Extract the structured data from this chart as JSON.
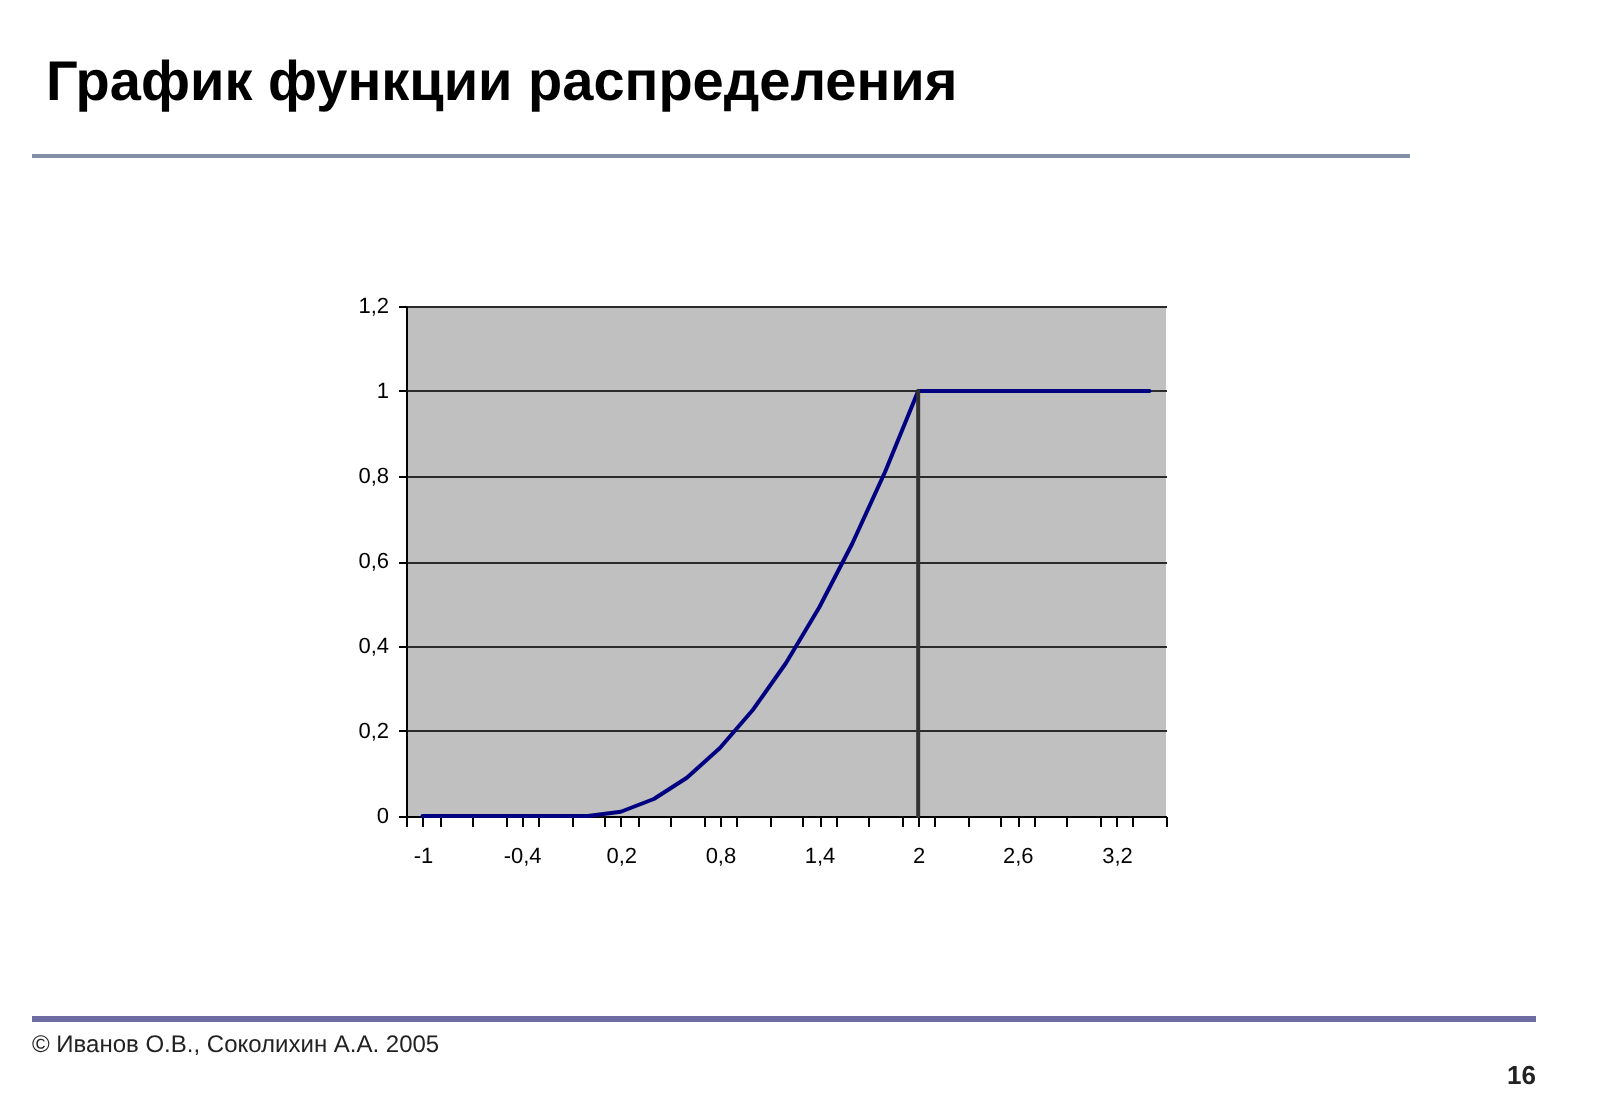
{
  "chart_data": {
    "type": "line",
    "title": "График функции распределения",
    "x": [
      -1,
      -0.8,
      -0.6,
      -0.4,
      -0.2,
      0,
      0.2,
      0.4,
      0.6,
      0.8,
      1,
      1.2,
      1.4,
      1.6,
      1.8,
      2,
      2.2,
      2.4,
      2.6,
      2.8,
      3,
      3.2,
      3.4
    ],
    "series": [
      {
        "color": "#000080",
        "values": [
          0,
          0,
          0,
          0,
          0,
          0,
          0.01,
          0.04,
          0.09,
          0.16,
          0.25,
          0.36,
          0.49,
          0.64,
          0.81,
          1,
          1,
          1,
          1,
          1,
          1,
          1,
          1
        ]
      },
      {
        "color": "#333333",
        "x": [
          2,
          2
        ],
        "values": [
          0,
          1
        ]
      }
    ],
    "xlim": [
      -1.1,
      3.5
    ],
    "xticks": [
      {
        "value": -1.1,
        "label": null
      },
      {
        "value": -1,
        "label": "-1"
      },
      {
        "value": -0.9,
        "label": null
      },
      {
        "value": -0.7,
        "label": null
      },
      {
        "value": -0.5,
        "label": null
      },
      {
        "value": -0.4,
        "label": "-0,4"
      },
      {
        "value": -0.3,
        "label": null
      },
      {
        "value": -0.1,
        "label": null
      },
      {
        "value": 0.1,
        "label": null
      },
      {
        "value": 0.2,
        "label": "0,2"
      },
      {
        "value": 0.3,
        "label": null
      },
      {
        "value": 0.5,
        "label": null
      },
      {
        "value": 0.7,
        "label": null
      },
      {
        "value": 0.8,
        "label": "0,8"
      },
      {
        "value": 0.9,
        "label": null
      },
      {
        "value": 1.1,
        "label": null
      },
      {
        "value": 1.3,
        "label": null
      },
      {
        "value": 1.4,
        "label": "1,4"
      },
      {
        "value": 1.5,
        "label": null
      },
      {
        "value": 1.7,
        "label": null
      },
      {
        "value": 1.9,
        "label": null
      },
      2,
      {
        "value": 2.1,
        "label": null
      },
      {
        "value": 2.3,
        "label": null
      },
      {
        "value": 2.5,
        "label": null
      },
      {
        "value": 2.6,
        "label": "2,6"
      },
      {
        "value": 2.7,
        "label": null
      },
      {
        "value": 2.9,
        "label": null
      },
      {
        "value": 3.1,
        "label": null
      },
      {
        "value": 3.2,
        "label": "3,2"
      },
      {
        "value": 3.3,
        "label": null
      },
      {
        "value": 3.5,
        "label": null
      }
    ],
    "ylim": [
      0,
      1.2
    ],
    "yticks": [
      0,
      {
        "value": 0.2,
        "label": "0,2"
      },
      {
        "value": 0.4,
        "label": "0,4"
      },
      {
        "value": 0.6,
        "label": "0,6"
      },
      {
        "value": 0.8,
        "label": "0,8"
      },
      1,
      {
        "value": 1.2,
        "label": "1,2"
      }
    ],
    "grid": "y",
    "annotations": [
      "© Иванов О.В., Соколихин А.А. 2005",
      "16"
    ]
  }
}
